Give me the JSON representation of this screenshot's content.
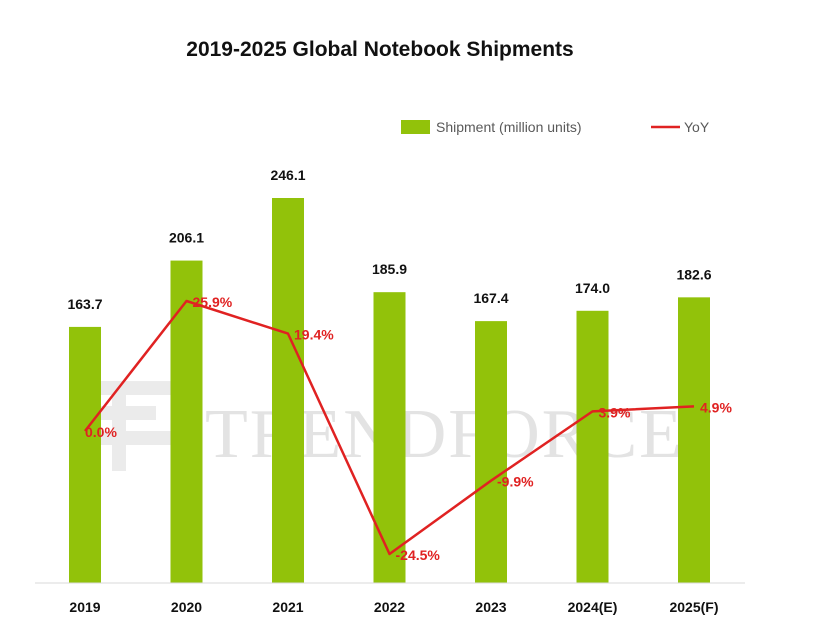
{
  "chart_data": {
    "type": "bar",
    "title": "2019-2025 Global Notebook Shipments",
    "categories": [
      "2019",
      "2020",
      "2021",
      "2022",
      "2023",
      "2024(E)",
      "2025(F)"
    ],
    "series": [
      {
        "name": "Shipment (million units)",
        "type": "bar",
        "color": "#92C20A",
        "values": [
          163.7,
          206.1,
          246.1,
          185.9,
          167.4,
          174.0,
          182.6
        ],
        "labels": [
          "163.7",
          "206.1",
          "246.1",
          "185.9",
          "167.4",
          "174.0",
          "182.6"
        ]
      },
      {
        "name": "YoY",
        "type": "line",
        "color": "#E02222",
        "values": [
          0.0,
          25.9,
          19.4,
          -24.5,
          -9.9,
          3.9,
          4.9
        ],
        "labels": [
          "0.0%",
          "25.9%",
          "19.4%",
          "-24.5%",
          "-9.9%",
          "3.9%",
          "4.9%"
        ],
        "axis": "secondary"
      }
    ],
    "ylim": [
      0,
      300
    ],
    "y2lim": [
      -30,
      70
    ],
    "legend_position": "top-right",
    "grid": false,
    "xlabel": "",
    "ylabel": ""
  },
  "watermark": {
    "text": "TRENDFORCE"
  }
}
